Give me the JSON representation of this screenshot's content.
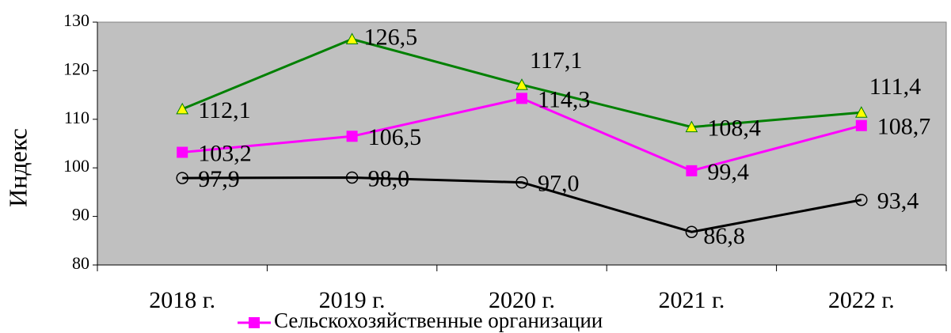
{
  "chart_data": {
    "type": "line",
    "y_label": "Индекс",
    "categories": [
      "2018 г.",
      "2019 г.",
      "2020 г.",
      "2021 г.",
      "2022 г."
    ],
    "series": [
      {
        "color": "#008000",
        "marker": "triangle",
        "marker_color": "#ffff00",
        "values": [
          112.1,
          126.5,
          117.1,
          108.4,
          111.4
        ],
        "value_labels": [
          "112,1",
          "126,5",
          "117,1",
          "108,4",
          "111,4"
        ]
      },
      {
        "name": "Сельскохозяйственные организации",
        "color": "#ff00ff",
        "marker": "square",
        "marker_color": "#ff00ff",
        "values": [
          103.2,
          106.5,
          114.3,
          99.4,
          108.7
        ],
        "value_labels": [
          "103,2",
          "106,5",
          "114,3",
          "99,4",
          "108,7"
        ]
      },
      {
        "color": "#000000",
        "marker": "circle",
        "marker_color": "none",
        "values": [
          97.9,
          98.0,
          97.0,
          86.8,
          93.4
        ],
        "value_labels": [
          "97,9",
          "98,0",
          "97,0",
          "86,8",
          "93,4"
        ]
      }
    ],
    "ylim": [
      80,
      130
    ],
    "yticks": [
      80,
      90,
      100,
      110,
      120,
      130
    ],
    "plot_background": "#c0c0c0",
    "legend": "bottom"
  }
}
